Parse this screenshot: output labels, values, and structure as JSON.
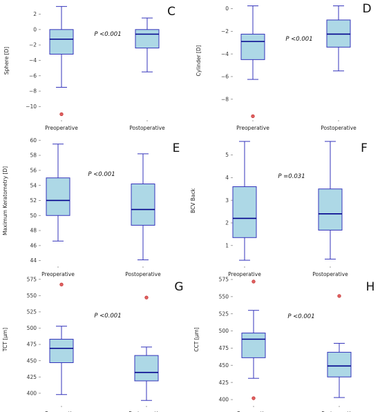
{
  "colors": {
    "box_fill": "#add8e6",
    "box_edge": "#3333bb",
    "median": "#00008b",
    "outlier_fill": "#e06060",
    "outlier_edge": "#c03030",
    "tick": "#888888"
  },
  "chart_data": [
    {
      "panel": "C",
      "type": "box",
      "ylabel": "Sphere [D]",
      "categories": [
        "Preoperative",
        "Postoperative"
      ],
      "ylim": [
        -11.4,
        3.3
      ],
      "yticks": [
        -10,
        -8,
        -6,
        -4,
        -2,
        0,
        2
      ],
      "ytick_labels": [
        "−10",
        "−8",
        "−6",
        "−4",
        "−2",
        "0",
        "2"
      ],
      "p_value": "P <0.001",
      "boxes": [
        {
          "whisker_low": -7.5,
          "q1": -3.2,
          "median": -1.25,
          "q3": 0.0,
          "whisker_high": 3.0,
          "outliers": [
            -11.0
          ]
        },
        {
          "whisker_low": -5.5,
          "q1": -2.4,
          "median": -0.6,
          "q3": 0.0,
          "whisker_high": 1.5,
          "outliers": []
        }
      ]
    },
    {
      "panel": "D",
      "type": "box",
      "ylabel": "Cylinder [D]",
      "categories": [
        "Preoperative",
        "Postoperative"
      ],
      "ylim": [
        -9.6,
        0.4
      ],
      "yticks": [
        -8,
        -6,
        -4,
        -2,
        0
      ],
      "ytick_labels": [
        "−8",
        "−6",
        "−4",
        "−2",
        "0"
      ],
      "p_value": "P <0.001",
      "boxes": [
        {
          "whisker_low": -6.25,
          "q1": -4.5,
          "median": -2.9,
          "q3": -2.25,
          "whisker_high": 0.25,
          "outliers": [
            -9.5
          ]
        },
        {
          "whisker_low": -5.5,
          "q1": -3.4,
          "median": -2.25,
          "q3": -1.0,
          "whisker_high": 0.25,
          "outliers": []
        }
      ]
    },
    {
      "panel": "E",
      "type": "box",
      "ylabel": "Maximum Keratometry [D]",
      "categories": [
        "Preoperative",
        "Postoperative"
      ],
      "ylim": [
        43.6,
        60.3
      ],
      "yticks": [
        44,
        46,
        48,
        50,
        52,
        54,
        56,
        58,
        60
      ],
      "ytick_labels": [
        "44",
        "46",
        "48",
        "50",
        "52",
        "54",
        "56",
        "58",
        "60"
      ],
      "p_value": "P <0.001",
      "boxes": [
        {
          "whisker_low": 46.6,
          "q1": 50.0,
          "median": 52.0,
          "q3": 55.0,
          "whisker_high": 59.5,
          "outliers": []
        },
        {
          "whisker_low": 44.1,
          "q1": 48.7,
          "median": 50.8,
          "q3": 54.2,
          "whisker_high": 58.2,
          "outliers": []
        }
      ]
    },
    {
      "panel": "F",
      "type": "box",
      "ylabel": "BCV Back",
      "categories": [
        "Preoperative",
        "Postoperative"
      ],
      "ylim": [
        0.2,
        5.75
      ],
      "yticks": [
        1,
        2,
        3,
        4,
        5
      ],
      "ytick_labels": [
        "1",
        "2",
        "3",
        "4",
        "5"
      ],
      "p_value": "P =0.031",
      "boxes": [
        {
          "whisker_low": 0.35,
          "q1": 1.35,
          "median": 2.2,
          "q3": 3.6,
          "whisker_high": 5.6,
          "outliers": []
        },
        {
          "whisker_low": 0.4,
          "q1": 1.68,
          "median": 2.4,
          "q3": 3.5,
          "whisker_high": 5.6,
          "outliers": []
        }
      ]
    },
    {
      "panel": "G",
      "type": "box",
      "ylabel": "TCT [μm]",
      "categories": [
        "Preoperative",
        "Postoperative"
      ],
      "ylim": [
        385,
        580
      ],
      "yticks": [
        400,
        425,
        450,
        475,
        500,
        525,
        550,
        575
      ],
      "ytick_labels": [
        "400",
        "425",
        "450",
        "475",
        "500",
        "525",
        "550",
        "575"
      ],
      "p_value": "P <0.001",
      "boxes": [
        {
          "whisker_low": 398,
          "q1": 447,
          "median": 469,
          "q3": 483,
          "whisker_high": 503,
          "outliers": [
            567
          ]
        },
        {
          "whisker_low": 389,
          "q1": 419,
          "median": 432,
          "q3": 458,
          "whisker_high": 471,
          "outliers": [
            547
          ]
        }
      ]
    },
    {
      "panel": "H",
      "type": "box",
      "ylabel": "CCT [μm]",
      "categories": [
        "Preoperative",
        "Postoperative"
      ],
      "ylim": [
        395,
        580
      ],
      "yticks": [
        400,
        425,
        450,
        475,
        500,
        525,
        550,
        575
      ],
      "ytick_labels": [
        "400",
        "425",
        "450",
        "475",
        "500",
        "525",
        "550",
        "575"
      ],
      "p_value": "P <0.001",
      "boxes": [
        {
          "whisker_low": 431,
          "q1": 461,
          "median": 488,
          "q3": 497,
          "whisker_high": 530,
          "outliers": [
            402,
            572
          ]
        },
        {
          "whisker_low": 403,
          "q1": 433,
          "median": 449,
          "q3": 469,
          "whisker_high": 482,
          "outliers": [
            551
          ]
        }
      ]
    }
  ]
}
